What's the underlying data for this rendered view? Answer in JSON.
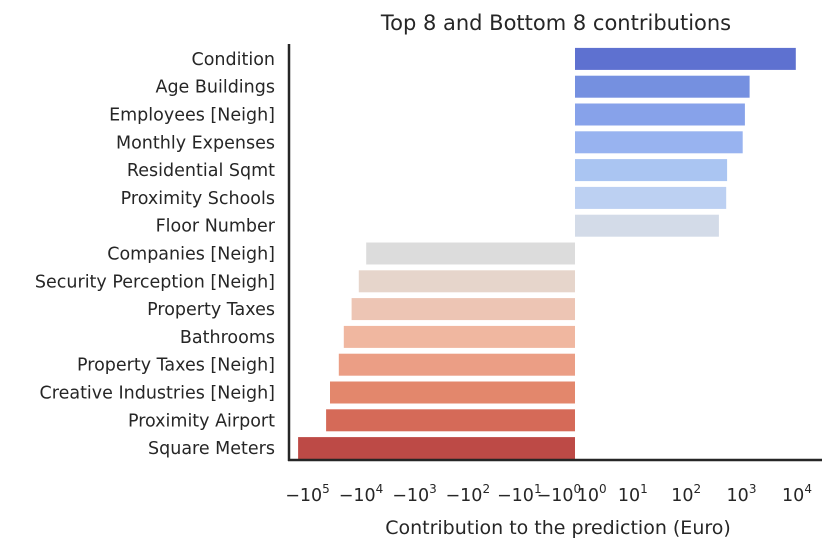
{
  "chart_data": {
    "type": "bar",
    "orientation": "horizontal",
    "title": "Top 8 and Bottom 8 contributions",
    "xlabel": "Contribution to the prediction (Euro)",
    "ylabel": "",
    "xscale": "symlog",
    "categories": [
      "Condition",
      "Age Buildings",
      "Employees [Neigh]",
      "Monthly Expenses",
      "Residential Sqmt",
      "Proximity Schools",
      "Floor Number",
      "Companies [Neigh]",
      "Security Perception [Neigh]",
      "Property Taxes",
      "Bathrooms",
      "Property Taxes [Neigh]",
      "Creative Industries [Neigh]",
      "Proximity Airport",
      "Square Meters"
    ],
    "values": [
      9500,
      1400,
      1150,
      1050,
      550,
      530,
      390,
      -8000,
      -11000,
      -15000,
      -21000,
      -26000,
      -38000,
      -45000,
      -150000
    ],
    "colors": [
      "#5e71d0",
      "#7590e0",
      "#87a2ea",
      "#98b3f0",
      "#aac5f2",
      "#bcd0f2",
      "#d3dbe8",
      "#dcdcdc",
      "#e6d5cb",
      "#edc5b4",
      "#f0b7a0",
      "#eb9e85",
      "#e3876c",
      "#d56a58",
      "#bd4a46"
    ],
    "x_tick_labels": [
      {
        "base": "−10",
        "exp": "5",
        "value": -100000
      },
      {
        "base": "−10",
        "exp": "4",
        "value": -10000
      },
      {
        "base": "−10",
        "exp": "3",
        "value": -1000
      },
      {
        "base": "−10",
        "exp": "2",
        "value": -100
      },
      {
        "base": "−10",
        "exp": "1",
        "value": -10
      },
      {
        "base": "−10",
        "exp": "0",
        "value": -1
      },
      {
        "base": "10",
        "exp": "0",
        "value": 1
      },
      {
        "base": "10",
        "exp": "1",
        "value": 10
      },
      {
        "base": "10",
        "exp": "2",
        "value": 100
      },
      {
        "base": "10",
        "exp": "3",
        "value": 1000
      },
      {
        "base": "10",
        "exp": "4",
        "value": 10000
      }
    ],
    "grid": false
  }
}
